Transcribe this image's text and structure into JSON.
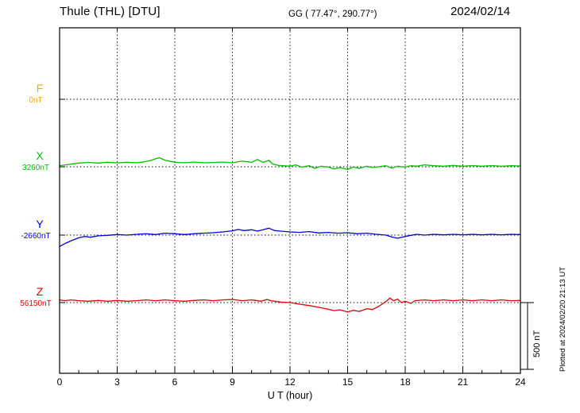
{
  "header": {
    "station_title": "Thule (THL)  [DTU]",
    "coords": "GG ( 77.47°, 290.77°)",
    "date": "2024/02/14"
  },
  "axis": {
    "xlabel": "U T (hour)",
    "xticks": [
      0,
      3,
      6,
      9,
      12,
      15,
      18,
      21,
      24
    ],
    "xmin": 0,
    "xmax": 24
  },
  "scale_bar": {
    "label": "500 nT",
    "nT": 500
  },
  "footer_note": "Plotted at 2024/02/20 21:13 UT",
  "chart_data": {
    "type": "line",
    "title": "Thule (THL) [DTU] magnetogram 2024/02/14",
    "xlabel": "U T (hour)",
    "x_range": [
      0,
      24
    ],
    "grid": "dotted baselines and 3-hour vertical dotted gridlines",
    "scale": {
      "label": "500 nT",
      "nT_per_div": 500
    },
    "series": [
      {
        "name": "F",
        "baseline_label": "0nT",
        "baseline_nT": 0,
        "color": "#FFA500",
        "points": []
      },
      {
        "name": "X",
        "baseline_label": "3260nT",
        "baseline_nT": 3260,
        "color": "#00C000",
        "points": [
          [
            0,
            8
          ],
          [
            0.5,
            18
          ],
          [
            1,
            28
          ],
          [
            1.5,
            33
          ],
          [
            2,
            28
          ],
          [
            2.5,
            34
          ],
          [
            3,
            29
          ],
          [
            3.5,
            34
          ],
          [
            4,
            30
          ],
          [
            4.5,
            40
          ],
          [
            4.8,
            50
          ],
          [
            5,
            60
          ],
          [
            5.2,
            68
          ],
          [
            5.5,
            48
          ],
          [
            6,
            34
          ],
          [
            6.5,
            30
          ],
          [
            7,
            36
          ],
          [
            7.5,
            30
          ],
          [
            8,
            32
          ],
          [
            8.5,
            36
          ],
          [
            9,
            30
          ],
          [
            9.5,
            42
          ],
          [
            10,
            34
          ],
          [
            10.3,
            55
          ],
          [
            10.6,
            33
          ],
          [
            10.9,
            48
          ],
          [
            11.1,
            20
          ],
          [
            11.4,
            10
          ],
          [
            12,
            4
          ],
          [
            12.3,
            14
          ],
          [
            12.6,
            -2
          ],
          [
            13,
            8
          ],
          [
            13.3,
            -12
          ],
          [
            13.6,
            4
          ],
          [
            14,
            -2
          ],
          [
            14.3,
            -16
          ],
          [
            14.6,
            -6
          ],
          [
            15,
            -20
          ],
          [
            15.3,
            -2
          ],
          [
            15.6,
            -12
          ],
          [
            16,
            4
          ],
          [
            16.3,
            -6
          ],
          [
            16.6,
            0
          ],
          [
            17,
            8
          ],
          [
            17.3,
            -10
          ],
          [
            17.6,
            4
          ],
          [
            18,
            -2
          ],
          [
            18.3,
            8
          ],
          [
            18.6,
            4
          ],
          [
            19,
            14
          ],
          [
            19.5,
            8
          ],
          [
            20,
            4
          ],
          [
            20.5,
            10
          ],
          [
            21,
            4
          ],
          [
            21.5,
            9
          ],
          [
            22,
            4
          ],
          [
            22.5,
            9
          ],
          [
            23,
            4
          ],
          [
            23.5,
            8
          ],
          [
            24,
            6
          ]
        ]
      },
      {
        "name": "Y",
        "baseline_label": "-2660nT",
        "baseline_nT": -2660,
        "color": "#0000E0",
        "points": [
          [
            0,
            -85
          ],
          [
            0.3,
            -62
          ],
          [
            0.6,
            -42
          ],
          [
            1,
            -20
          ],
          [
            1.3,
            -10
          ],
          [
            1.6,
            -16
          ],
          [
            2,
            -6
          ],
          [
            2.5,
            -2
          ],
          [
            3,
            4
          ],
          [
            3.5,
            0
          ],
          [
            4,
            6
          ],
          [
            4.5,
            10
          ],
          [
            5,
            4
          ],
          [
            5.5,
            14
          ],
          [
            6,
            10
          ],
          [
            6.5,
            4
          ],
          [
            7,
            10
          ],
          [
            7.5,
            14
          ],
          [
            8,
            18
          ],
          [
            8.5,
            24
          ],
          [
            9,
            32
          ],
          [
            9.3,
            42
          ],
          [
            9.6,
            34
          ],
          [
            10,
            40
          ],
          [
            10.3,
            30
          ],
          [
            10.6,
            40
          ],
          [
            10.9,
            52
          ],
          [
            11.2,
            34
          ],
          [
            11.5,
            30
          ],
          [
            12,
            24
          ],
          [
            12.5,
            20
          ],
          [
            13,
            26
          ],
          [
            13.5,
            16
          ],
          [
            14,
            20
          ],
          [
            14.5,
            14
          ],
          [
            15,
            18
          ],
          [
            15.5,
            10
          ],
          [
            16,
            14
          ],
          [
            16.5,
            6
          ],
          [
            17,
            0
          ],
          [
            17.3,
            -14
          ],
          [
            17.6,
            -24
          ],
          [
            18,
            -10
          ],
          [
            18.3,
            -2
          ],
          [
            18.6,
            6
          ],
          [
            19,
            0
          ],
          [
            19.5,
            6
          ],
          [
            20,
            2
          ],
          [
            20.5,
            6
          ],
          [
            21,
            2
          ],
          [
            21.5,
            6
          ],
          [
            22,
            2
          ],
          [
            22.5,
            6
          ],
          [
            23,
            2
          ],
          [
            23.5,
            6
          ],
          [
            24,
            4
          ]
        ]
      },
      {
        "name": "Z",
        "baseline_label": "56150nT",
        "baseline_nT": 56150,
        "color": "#E00000",
        "points": [
          [
            0,
            20
          ],
          [
            0.3,
            14
          ],
          [
            0.6,
            20
          ],
          [
            1,
            14
          ],
          [
            1.5,
            10
          ],
          [
            2,
            16
          ],
          [
            2.5,
            10
          ],
          [
            3,
            16
          ],
          [
            3.5,
            10
          ],
          [
            4,
            14
          ],
          [
            4.5,
            20
          ],
          [
            5,
            14
          ],
          [
            5.5,
            20
          ],
          [
            6,
            14
          ],
          [
            6.5,
            10
          ],
          [
            7,
            16
          ],
          [
            7.5,
            20
          ],
          [
            8,
            14
          ],
          [
            8.5,
            20
          ],
          [
            9,
            24
          ],
          [
            9.5,
            14
          ],
          [
            10,
            20
          ],
          [
            10.5,
            10
          ],
          [
            10.8,
            24
          ],
          [
            11,
            14
          ],
          [
            11.5,
            4
          ],
          [
            12,
            0
          ],
          [
            12.5,
            -12
          ],
          [
            13,
            -22
          ],
          [
            13.5,
            -36
          ],
          [
            14,
            -50
          ],
          [
            14.3,
            -60
          ],
          [
            14.6,
            -54
          ],
          [
            15,
            -70
          ],
          [
            15.3,
            -58
          ],
          [
            15.6,
            -66
          ],
          [
            16,
            -46
          ],
          [
            16.3,
            -52
          ],
          [
            16.6,
            -30
          ],
          [
            17,
            8
          ],
          [
            17.2,
            34
          ],
          [
            17.4,
            14
          ],
          [
            17.6,
            26
          ],
          [
            17.8,
            0
          ],
          [
            18,
            10
          ],
          [
            18.3,
            -6
          ],
          [
            18.5,
            14
          ],
          [
            19,
            20
          ],
          [
            19.5,
            14
          ],
          [
            20,
            20
          ],
          [
            20.5,
            14
          ],
          [
            21,
            20
          ],
          [
            21.5,
            14
          ],
          [
            22,
            20
          ],
          [
            22.5,
            14
          ],
          [
            23,
            20
          ],
          [
            23.5,
            14
          ],
          [
            24,
            16
          ]
        ]
      }
    ]
  }
}
